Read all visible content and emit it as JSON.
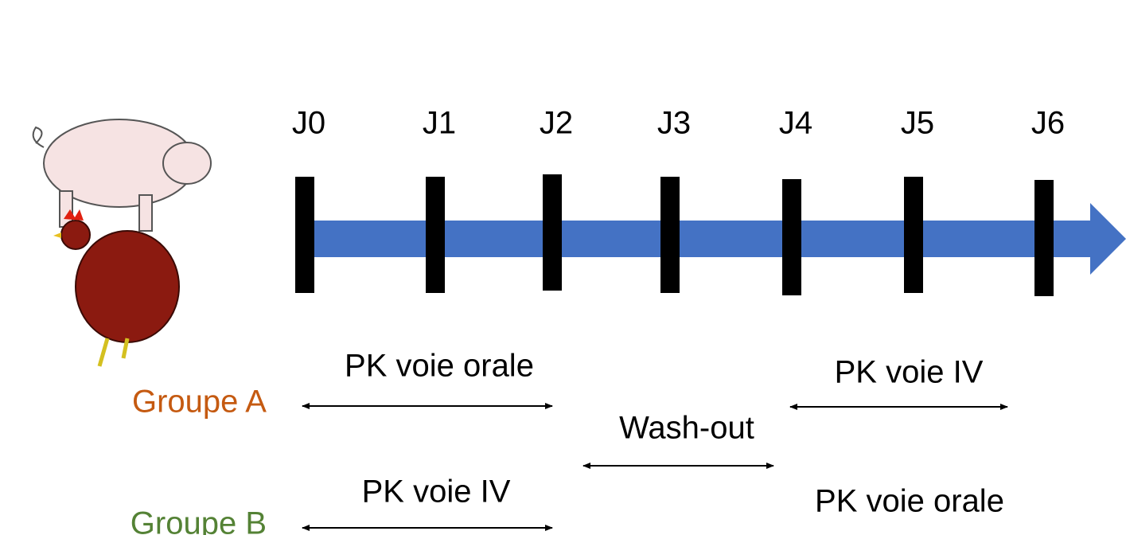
{
  "timeline": {
    "days": [
      "J0",
      "J1",
      "J2",
      "J3",
      "J4",
      "J5",
      "J6"
    ]
  },
  "groups": [
    {
      "label": "Groupe A",
      "first_period": "PK voie orale",
      "second_period": "PK voie IV"
    },
    {
      "label": "Groupe B",
      "first_period": "PK voie IV",
      "second_period": "PK voie orale"
    }
  ],
  "washout": "Wash-out"
}
